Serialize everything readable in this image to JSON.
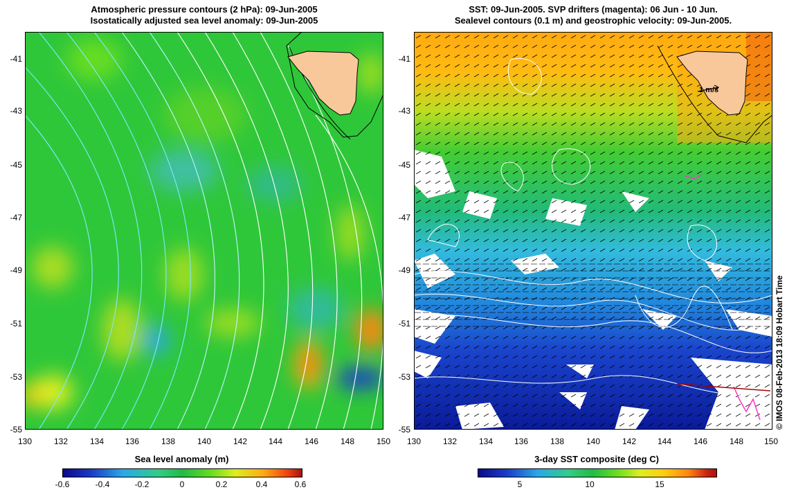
{
  "left_panel": {
    "title_line1": "Atmospheric pressure contours (2 hPa): 09-Jun-2005",
    "title_line2": "Isostatically adjusted sea level anomaly: 09-Jun-2005",
    "colorbar_label": "Sea level anomaly (m)",
    "colorbar_ticks": [
      "-0.6",
      "-0.4",
      "-0.2",
      "0",
      "0.2",
      "0.4",
      "0.6"
    ],
    "colorbar_range": [
      -0.6,
      0.6
    ]
  },
  "right_panel": {
    "title_line1": "SST: 09-Jun-2005. SVP drifters (magenta): 06 Jun - 10 Jun.",
    "title_line2": "Sealevel contours (0.1 m) and geostrophic velocity: 09-Jun-2005.",
    "colorbar_label": "3-day SST composite (deg C)",
    "colorbar_ticks": [
      "5",
      "10",
      "15"
    ],
    "colorbar_range": [
      2,
      19
    ],
    "velocity_scale_label": "1 m/s"
  },
  "axes": {
    "lon_ticks": [
      "130",
      "132",
      "134",
      "136",
      "138",
      "140",
      "142",
      "144",
      "146",
      "148",
      "150"
    ],
    "lat_ticks": [
      "-41",
      "-43",
      "-45",
      "-47",
      "-49",
      "-51",
      "-53",
      "-55"
    ],
    "lon_range": [
      130,
      150
    ],
    "lat_range": [
      -55,
      -40
    ]
  },
  "credit": "© IMOS 08-Feb-2013 18:09 Hobart Time",
  "colors": {
    "land": "#f8c89a",
    "contour_pressure": "#ffffff",
    "contour_cyan": "#7fe8ff",
    "drifter": "#ff33cc"
  }
}
